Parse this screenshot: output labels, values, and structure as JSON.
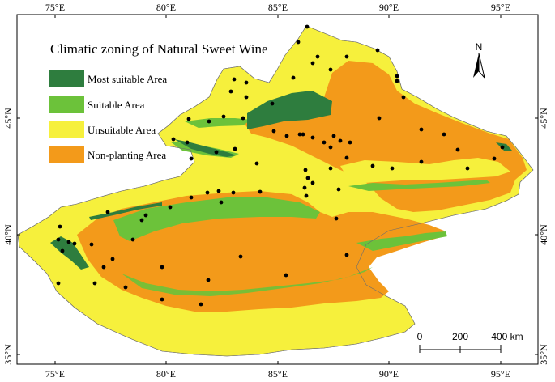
{
  "legend": {
    "title": "Climatic zoning of Natural Sweet Wine",
    "items": [
      {
        "label": "Most suitable Area",
        "color": "#2e7d3e"
      },
      {
        "label": "Suitable Area",
        "color": "#6cc23a"
      },
      {
        "label": "Unsuitable Area",
        "color": "#f6f03c"
      },
      {
        "label": "Non-planting Area",
        "color": "#f39a1a"
      }
    ]
  },
  "axes": {
    "top_labels": [
      "75°E",
      "80°E",
      "85°E",
      "90°E",
      "95°E"
    ],
    "bottom_labels": [
      "75°E",
      "80°E",
      "85°E",
      "90°E",
      "95°E"
    ],
    "left_labels": [
      "45°N",
      "40°N",
      "35°N"
    ],
    "right_labels": [
      "45°N",
      "40°N",
      "35°N"
    ]
  },
  "north_arrow": {
    "label": "N",
    "icon": "north-arrow-icon"
  },
  "scale_bar": {
    "labels": [
      "0",
      "200",
      "400 km"
    ]
  },
  "colors": {
    "site_marker": "#000000"
  }
}
